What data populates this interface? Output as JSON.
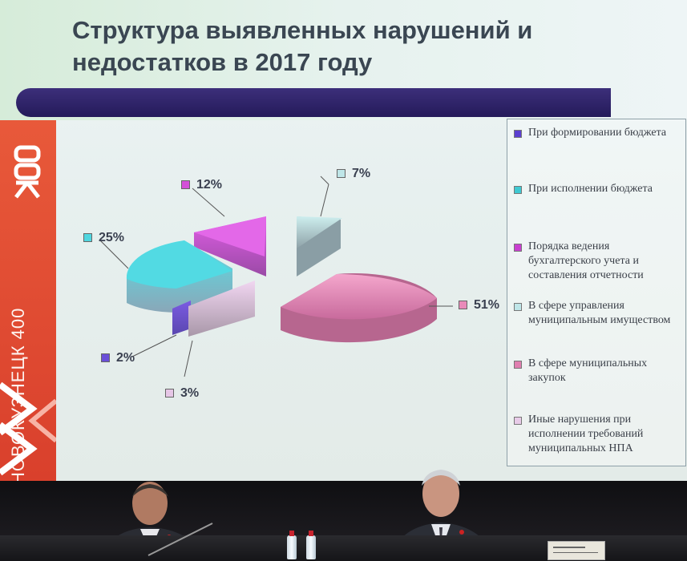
{
  "slide": {
    "title": "Структура выявленных нарушений и недостатков в 2017 году",
    "side_logo_text": "НОВОКУЗНЕЦК 400",
    "colors": {
      "purple_bar": "#2e2268",
      "side_band": "#e04e33"
    }
  },
  "chart_data": {
    "type": "pie",
    "title": "Структура выявленных нарушений и недостатков в 2017 году",
    "slices": [
      {
        "label": "При формировании бюджета",
        "value": 2,
        "color": "#6a4fd8"
      },
      {
        "label": "При исполнении бюджета",
        "value": 25,
        "color": "#4fd6df"
      },
      {
        "label": "Порядка ведения бухгалтерского учета и составления отчетности",
        "value": 12,
        "color": "#d44fd8"
      },
      {
        "label": "В сфере управления муниципальным имуществом",
        "value": 7,
        "color": "#bfe9ea"
      },
      {
        "label": "В сфере муниципальных закупок",
        "value": 51,
        "color": "#e98ab9"
      },
      {
        "label": "Иные нарушения при исполнении требований муниципальных НПА",
        "value": 3,
        "color": "#e6c6e6"
      }
    ],
    "data_labels": [
      "2%",
      "25%",
      "12%",
      "7%",
      "51%",
      "3%"
    ],
    "legend_position": "right"
  },
  "legend": {
    "items": [
      {
        "label": "При формировании бюджета",
        "color": "#5b3fd0"
      },
      {
        "label": "При исполнении бюджета",
        "color": "#3fc9d2"
      },
      {
        "label": "Порядка ведения бухгалтерского учета и составления отчетности",
        "color": "#c93fd0"
      },
      {
        "label": "В сфере управления муниципальным имуществом",
        "color": "#bfe6e8"
      },
      {
        "label": "В сфере муниципальных закупок",
        "color": "#e07fb0"
      },
      {
        "label": "Иные нарушения при исполнении требований муниципальных НПА",
        "color": "#e8cbe8"
      }
    ]
  },
  "labels": {
    "p2": "2%",
    "p25": "25%",
    "p12": "12%",
    "p7": "7%",
    "p51": "51%",
    "p3": "3%"
  }
}
